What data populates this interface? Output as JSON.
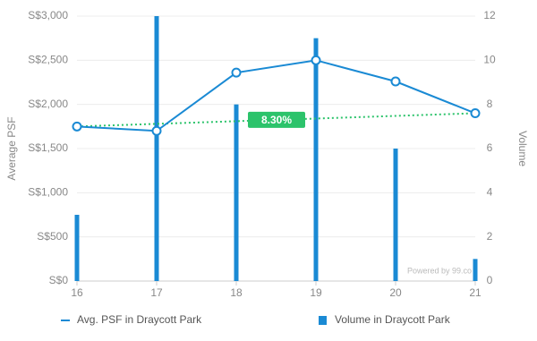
{
  "chart_data": {
    "type": "combo",
    "x": [
      16,
      17,
      18,
      19,
      20,
      21
    ],
    "xlim": [
      16,
      21
    ],
    "xticks": [
      16,
      17,
      18,
      19,
      20,
      21
    ],
    "ylim": [
      0,
      3000
    ],
    "yticks": [
      {
        "value": 0,
        "label": "S$0"
      },
      {
        "value": 500,
        "label": "S$500"
      },
      {
        "value": 1000,
        "label": "S$1,000"
      },
      {
        "value": 1500,
        "label": "S$1,500"
      },
      {
        "value": 2000,
        "label": "S$2,000"
      },
      {
        "value": 2500,
        "label": "S$2,500"
      },
      {
        "value": 3000,
        "label": "S$3,000"
      }
    ],
    "y2lim": [
      0,
      12
    ],
    "y2ticks": [
      0,
      2,
      4,
      6,
      8,
      10,
      12
    ],
    "ylabel": "Average PSF",
    "y2label": "Volume",
    "grid": true,
    "series": [
      {
        "name": "Avg. PSF in Draycott Park",
        "type": "line",
        "color": "#1a8ad4",
        "values": [
          1750,
          1700,
          2360,
          2500,
          2260,
          1900
        ]
      },
      {
        "name": "Volume in Draycott Park",
        "type": "bar",
        "axis": "y2",
        "color": "#1a8ad4",
        "values": [
          3,
          12,
          8,
          11,
          6,
          1
        ]
      }
    ],
    "trendline": {
      "color": "#2cc36b",
      "values": [
        1750,
        1900
      ],
      "label": "8.30%"
    },
    "watermark": "Powered by 99.co"
  }
}
